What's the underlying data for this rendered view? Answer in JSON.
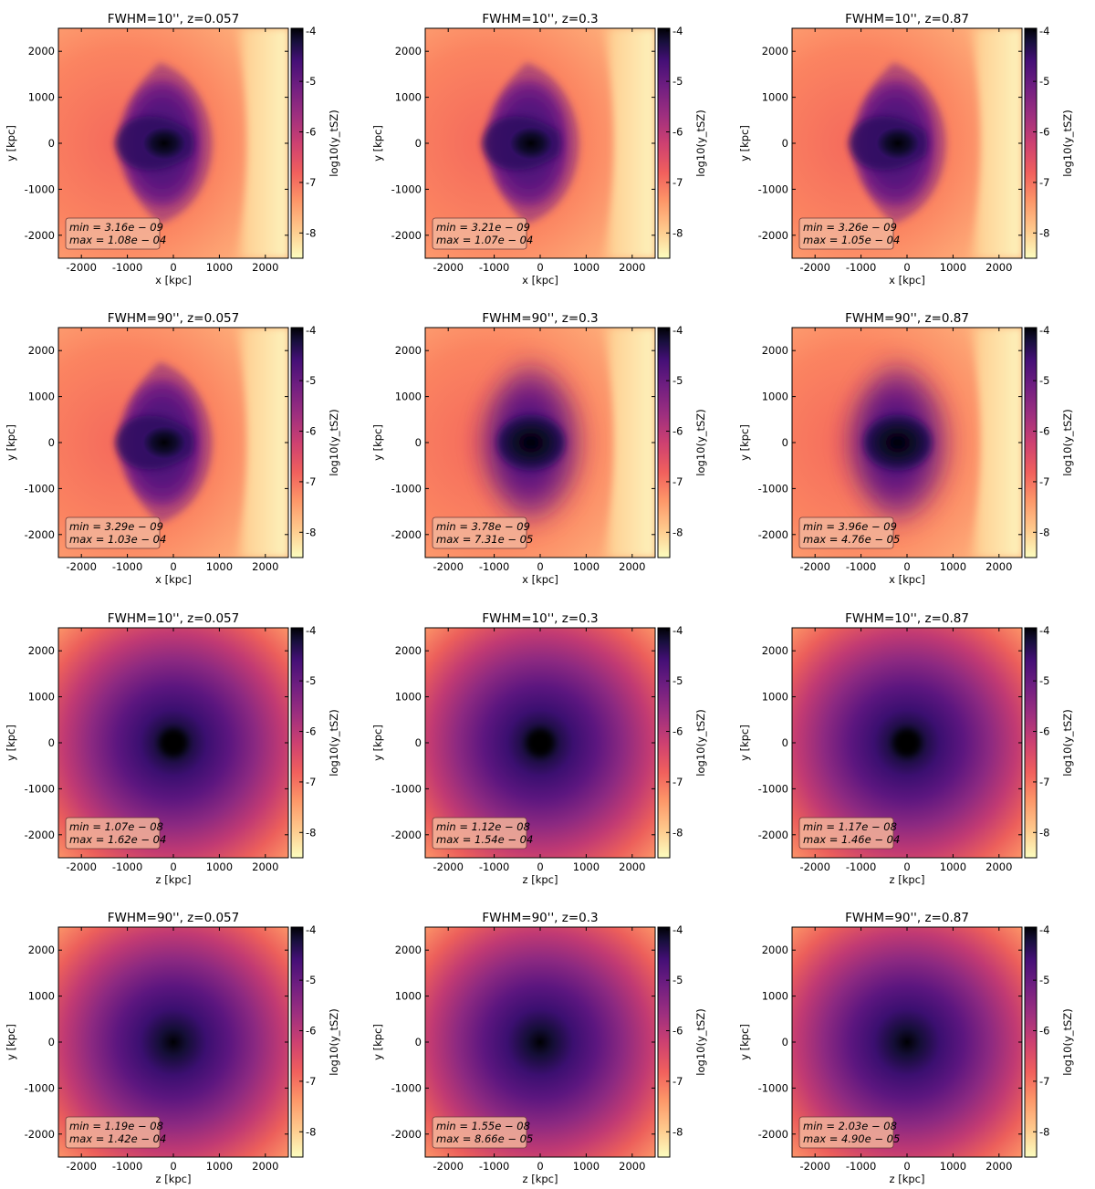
{
  "figure": {
    "colorbar": {
      "label": "log10(y_tSZ)",
      "ticks": [
        -4,
        -5,
        -6,
        -7,
        -8
      ],
      "range": [
        -8.5,
        -3.95
      ],
      "colormap": "magma_r"
    },
    "axis_ticks": [
      -2000,
      -1000,
      0,
      1000,
      2000
    ],
    "axis_range": [
      -2500,
      2500
    ]
  },
  "chart_data": [
    {
      "type": "heatmap",
      "title": "FWHM=10'', z=0.057",
      "xlabel": "x [kpc]",
      "ylabel": "y [kpc]",
      "view": "xy",
      "fwhm_arcsec": 10,
      "redshift": 0.057,
      "min_label": "min = 3.16e − 09",
      "max_label": "max = 1.08e − 04"
    },
    {
      "type": "heatmap",
      "title": "FWHM=10'', z=0.3",
      "xlabel": "x [kpc]",
      "ylabel": "y [kpc]",
      "view": "xy",
      "fwhm_arcsec": 10,
      "redshift": 0.3,
      "min_label": "min = 3.21e − 09",
      "max_label": "max = 1.07e − 04"
    },
    {
      "type": "heatmap",
      "title": "FWHM=10'', z=0.87",
      "xlabel": "x [kpc]",
      "ylabel": "y [kpc]",
      "view": "xy",
      "fwhm_arcsec": 10,
      "redshift": 0.87,
      "min_label": "min = 3.26e − 09",
      "max_label": "max = 1.05e − 04"
    },
    {
      "type": "heatmap",
      "title": "FWHM=90'', z=0.057",
      "xlabel": "x [kpc]",
      "ylabel": "y [kpc]",
      "view": "xy",
      "fwhm_arcsec": 90,
      "redshift": 0.057,
      "min_label": "min = 3.29e − 09",
      "max_label": "max = 1.03e − 04"
    },
    {
      "type": "heatmap",
      "title": "FWHM=90'', z=0.3",
      "xlabel": "x [kpc]",
      "ylabel": "y [kpc]",
      "view": "xy",
      "fwhm_arcsec": 90,
      "redshift": 0.3,
      "min_label": "min = 3.78e − 09",
      "max_label": "max = 7.31e − 05"
    },
    {
      "type": "heatmap",
      "title": "FWHM=90'', z=0.87",
      "xlabel": "x [kpc]",
      "ylabel": "y [kpc]",
      "view": "xy",
      "fwhm_arcsec": 90,
      "redshift": 0.87,
      "min_label": "min = 3.96e − 09",
      "max_label": "max = 4.76e − 05"
    },
    {
      "type": "heatmap",
      "title": "FWHM=10'', z=0.057",
      "xlabel": "z [kpc]",
      "ylabel": "y [kpc]",
      "view": "zy",
      "fwhm_arcsec": 10,
      "redshift": 0.057,
      "min_label": "min = 1.07e − 08",
      "max_label": "max = 1.62e − 04"
    },
    {
      "type": "heatmap",
      "title": "FWHM=10'', z=0.3",
      "xlabel": "z [kpc]",
      "ylabel": "y [kpc]",
      "view": "zy",
      "fwhm_arcsec": 10,
      "redshift": 0.3,
      "min_label": "min = 1.12e − 08",
      "max_label": "max = 1.54e − 04"
    },
    {
      "type": "heatmap",
      "title": "FWHM=10'', z=0.87",
      "xlabel": "z [kpc]",
      "ylabel": "y [kpc]",
      "view": "zy",
      "fwhm_arcsec": 10,
      "redshift": 0.87,
      "min_label": "min = 1.17e − 08",
      "max_label": "max = 1.46e − 04"
    },
    {
      "type": "heatmap",
      "title": "FWHM=90'', z=0.057",
      "xlabel": "z [kpc]",
      "ylabel": "y [kpc]",
      "view": "zy",
      "fwhm_arcsec": 90,
      "redshift": 0.057,
      "min_label": "min = 1.19e − 08",
      "max_label": "max = 1.42e − 04"
    },
    {
      "type": "heatmap",
      "title": "FWHM=90'', z=0.3",
      "xlabel": "z [kpc]",
      "ylabel": "y [kpc]",
      "view": "zy",
      "fwhm_arcsec": 90,
      "redshift": 0.3,
      "min_label": "min = 1.55e − 08",
      "max_label": "max = 8.66e − 05"
    },
    {
      "type": "heatmap",
      "title": "FWHM=90'', z=0.87",
      "xlabel": "z [kpc]",
      "ylabel": "y [kpc]",
      "view": "zy",
      "fwhm_arcsec": 90,
      "redshift": 0.87,
      "min_label": "min = 2.03e − 08",
      "max_label": "max = 4.90e − 05"
    }
  ]
}
